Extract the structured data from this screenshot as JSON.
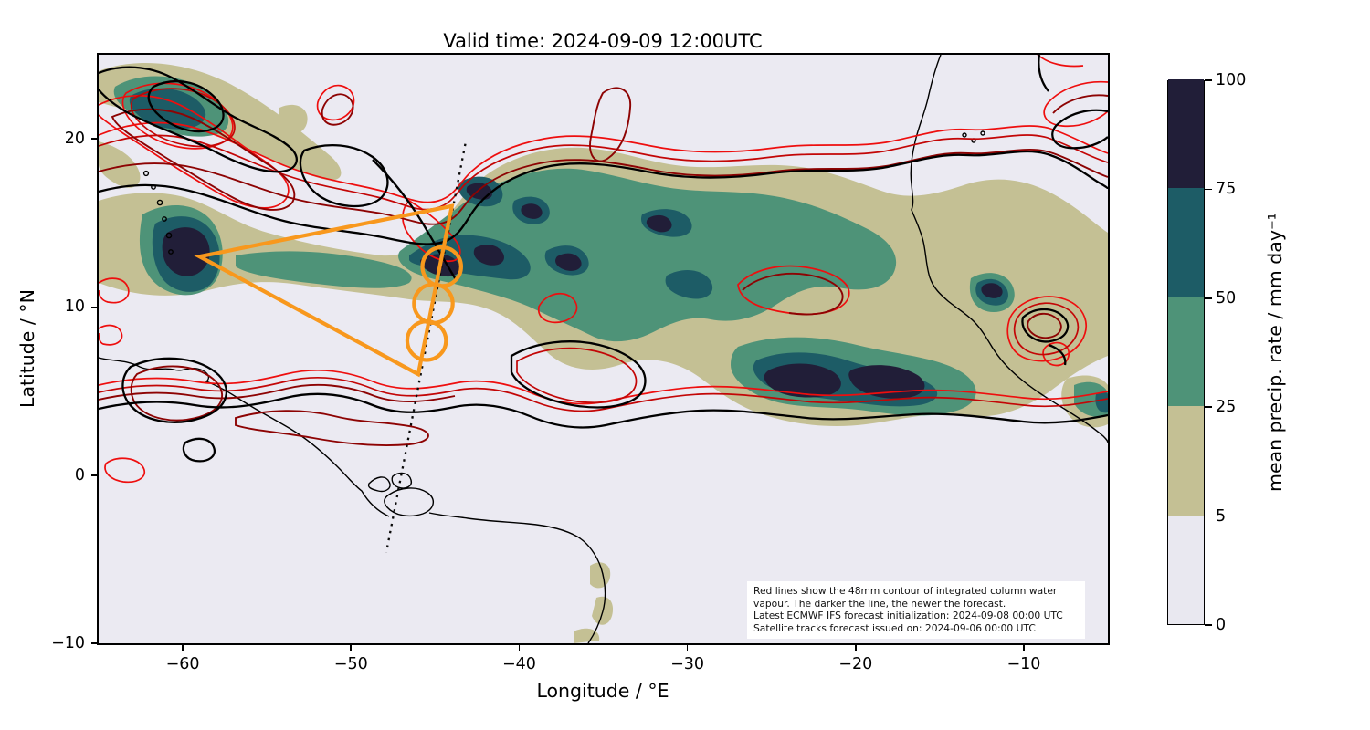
{
  "title": "Valid time: 2024-09-09 12:00UTC",
  "axes": {
    "x": {
      "label": "Longitude / °E",
      "range": [
        -65,
        -5
      ],
      "ticks": [
        -60,
        -50,
        -40,
        -30,
        -20,
        -10
      ],
      "tick_labels": [
        "−60",
        "−50",
        "−40",
        "−30",
        "−20",
        "−10"
      ]
    },
    "y": {
      "label": "Latitude / °N",
      "range": [
        -10,
        25
      ],
      "ticks": [
        20,
        10,
        0,
        -10
      ],
      "tick_labels": [
        "20",
        "10",
        "0",
        "−10"
      ]
    }
  },
  "colorbar": {
    "label": "mean precip. rate / mm day⁻¹",
    "boundaries": [
      0,
      5,
      25,
      50,
      75,
      100
    ],
    "tick_labels": [
      "0",
      "5",
      "25",
      "50",
      "75",
      "100"
    ],
    "segment_colors": [
      "#e9e8f0",
      "#c4c094",
      "#4e9378",
      "#1d5c66",
      "#211e38"
    ]
  },
  "annotation": {
    "lines": [
      "Red lines show the 48mm contour of integrated column water",
      "vapour. The darker the line, the newer the forecast.",
      "Latest ECMWF IFS forecast initialization: 2024-09-08 00:00 UTC",
      "Satellite tracks forecast issued on: 2024-09-06 00:00 UTC"
    ]
  },
  "overlays": {
    "flight_track": {
      "color": "#f8981d",
      "triangle_lonlat": [
        [
          -59,
          13
        ],
        [
          -44,
          16
        ],
        [
          -46,
          6
        ]
      ],
      "circles_lonlat": [
        [
          -44.6,
          12.4
        ],
        [
          -45.1,
          10.2
        ],
        [
          -45.5,
          8.0
        ]
      ],
      "circle_radius_deg": 1.15
    },
    "satellite_track": {
      "style": "dotted",
      "color": "#0a0a0a",
      "line_lonlat": [
        [
          -43.2,
          19.7
        ],
        [
          -47.9,
          -4.6
        ]
      ]
    },
    "red_contour_meaning": "48mm contour of integrated column water vapour; darker line = newer forecast",
    "contour_line_colors": [
      "#ee0e0e",
      "#c30606",
      "#8d0303",
      "#000000"
    ]
  },
  "map": {
    "background_color": "#ebeaf2",
    "coastline_color": "#000000",
    "precip_fill_colors": {
      "5_25": "#c4c094",
      "25_50": "#4e9378",
      "50_75": "#1d5c66",
      "75_100": "#211e38"
    }
  }
}
